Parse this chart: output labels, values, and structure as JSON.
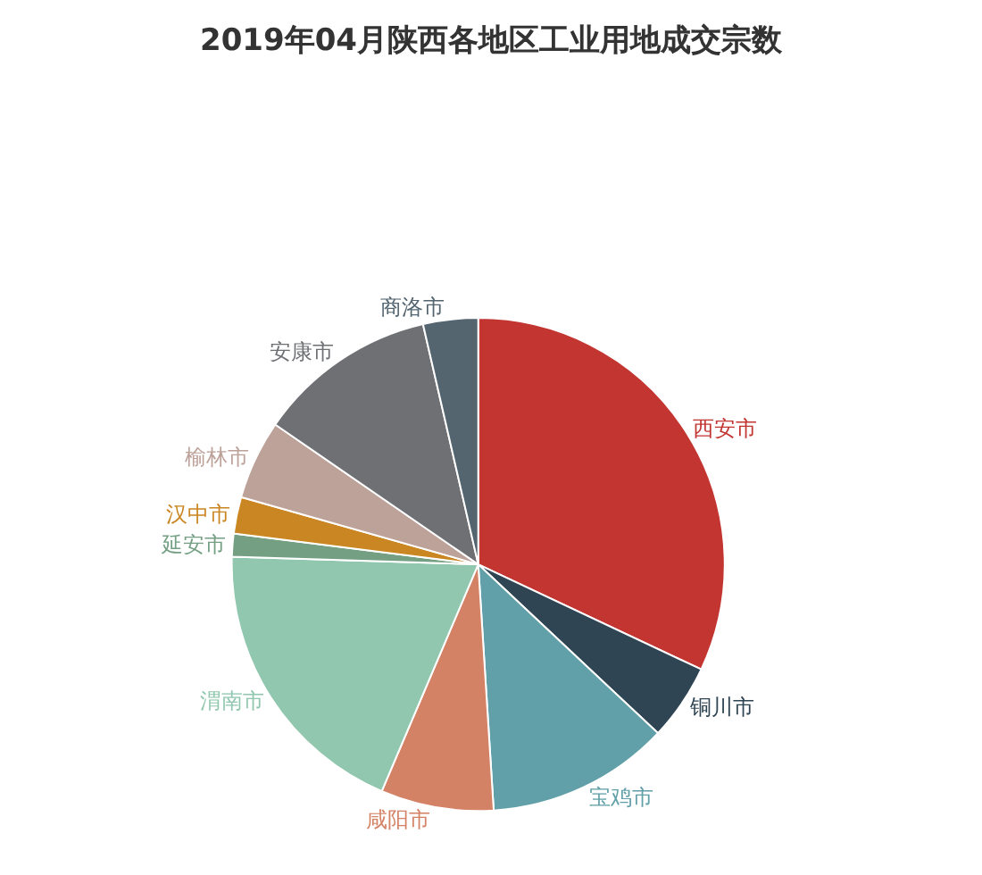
{
  "chart_data": {
    "type": "pie",
    "title": "2019年04月陕西各地区工业用地成交宗数",
    "categories": [
      "西安市",
      "铜川市",
      "宝鸡市",
      "咸阳市",
      "渭南市",
      "延安市",
      "汉中市",
      "榆林市",
      "安康市",
      "商洛市"
    ],
    "values": [
      32.0,
      5.0,
      12.0,
      7.4,
      19.1,
      1.5,
      2.4,
      5.2,
      11.8,
      3.6
    ],
    "colors": [
      "#c23531",
      "#2f4554",
      "#61a0a8",
      "#d48265",
      "#91c7ae",
      "#749f83",
      "#ca8622",
      "#bda29a",
      "#6e7074",
      "#546570"
    ],
    "legend": false
  }
}
